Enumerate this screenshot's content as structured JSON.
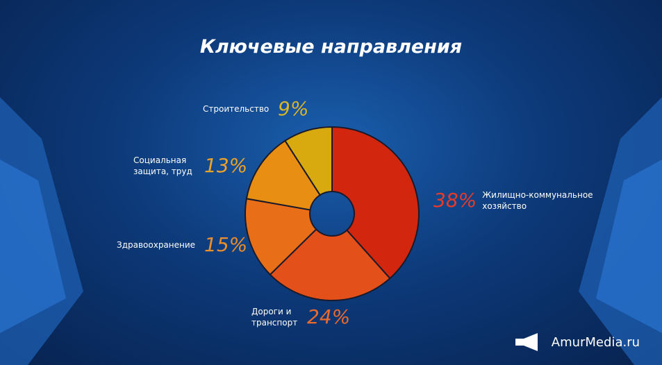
{
  "chart_data": {
    "type": "donut",
    "title": "Ключевые направления",
    "categories": [
      "Жилищно-коммунальное хозяйство",
      "Дороги и транспорт",
      "Здравоохранение",
      "Социальная защита, труд",
      "Строительство"
    ],
    "values": [
      38,
      24,
      15,
      13,
      9
    ],
    "value_labels": [
      "38%",
      "24%",
      "15%",
      "13%",
      "9%"
    ],
    "colors": [
      "#d2260f",
      "#e4501a",
      "#e86e18",
      "#e88e12",
      "#d8aa10"
    ],
    "label_colors": [
      "#e83a2a",
      "#ea6a2e",
      "#eb8f2c",
      "#eda228",
      "#d8b428"
    ]
  },
  "watermark": "AmurMedia.ru"
}
